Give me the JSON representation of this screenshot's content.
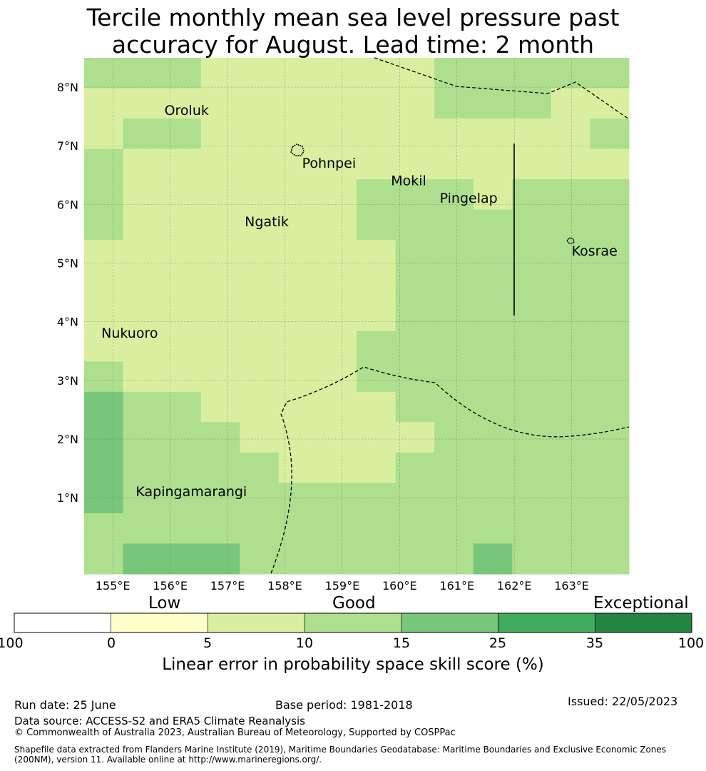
{
  "title_line1": "Tercile monthly mean sea level pressure past",
  "title_line2": "accuracy for August. Lead time: 2 month",
  "map": {
    "lon_range": [
      154.5,
      164.0
    ],
    "lat_range": [
      -0.3,
      8.5
    ],
    "x_ticks": [
      {
        "value": 155,
        "label": "155°E"
      },
      {
        "value": 156,
        "label": "156°E"
      },
      {
        "value": 157,
        "label": "157°E"
      },
      {
        "value": 158,
        "label": "158°E"
      },
      {
        "value": 159,
        "label": "159°E"
      },
      {
        "value": 160,
        "label": "160°E"
      },
      {
        "value": 161,
        "label": "161°E"
      },
      {
        "value": 162,
        "label": "162°E"
      },
      {
        "value": 163,
        "label": "163°E"
      }
    ],
    "y_ticks": [
      {
        "value": 1,
        "label": "1°N"
      },
      {
        "value": 2,
        "label": "2°N"
      },
      {
        "value": 3,
        "label": "3°N"
      },
      {
        "value": 4,
        "label": "4°N"
      },
      {
        "value": 5,
        "label": "5°N"
      },
      {
        "value": 6,
        "label": "6°N"
      },
      {
        "value": 7,
        "label": "7°N"
      },
      {
        "value": 8,
        "label": "8°N"
      }
    ],
    "cell_colors": {
      "1": "#d9ef9f",
      "2": "#addf8e",
      "3": "#78c679"
    },
    "cell_classes_legend": {
      "1": "5 to 10",
      "2": "10 to 15",
      "3": "15 to 25"
    },
    "grid_rows_north_to_south": [
      "22211111122222",
      "11111111122211",
      "12211111111112",
      "21111111111111",
      "21111112221222",
      "21111112222222",
      "11111111222222",
      "11111111222222",
      "11111111222222",
      "11111112222222",
      "21111112222222",
      "32211111222222",
      "32221111122222",
      "32222111222222",
      "32222222222222",
      "22222222222222",
      "23332222223222"
    ],
    "places": [
      {
        "name": "Oroluk",
        "lon": 155.9,
        "lat": 7.6
      },
      {
        "name": "Pohnpei",
        "lon": 158.3,
        "lat": 6.7
      },
      {
        "name": "Mokil",
        "lon": 159.85,
        "lat": 6.4
      },
      {
        "name": "Pingelap",
        "lon": 160.7,
        "lat": 6.1
      },
      {
        "name": "Ngatik",
        "lon": 157.3,
        "lat": 5.7
      },
      {
        "name": "Kosrae",
        "lon": 163.0,
        "lat": 5.2
      },
      {
        "name": "Nukuoro",
        "lon": 154.8,
        "lat": 3.8
      },
      {
        "name": "Kapingamarangi",
        "lon": 155.4,
        "lat": 1.1
      }
    ]
  },
  "colorbar": {
    "category_labels": [
      "Low",
      "Good",
      "Exceptional"
    ],
    "boundaries": [
      "-100",
      "0",
      "5",
      "10",
      "15",
      "25",
      "35",
      "100"
    ],
    "colors": [
      "#ffffff",
      "#ffffcc",
      "#d9ef9f",
      "#addf8e",
      "#78c679",
      "#41ab5d",
      "#238443"
    ],
    "title": "Linear error in probability space skill score (%)"
  },
  "footer": {
    "run_date": "Run date: 25 June",
    "base_period": "Base period: 1981-2018",
    "issued": "Issued: 22/05/2023",
    "data_source": "Data source: ACCESS-S2 and ERA5 Climate Reanalysis",
    "copyright": "© Commonwealth of Australia 2023, Australian Bureau of Meteorology, Supported by COSPPac",
    "shapefile_line1": "Shapefile data extracted from Flanders Marine Institute (2019), Maritime Boundaries Geodatabase: Maritime Boundaries and Exclusive Economic Zones",
    "shapefile_line2": "(200NM), version 11. Available online at http://www.marineregions.org/."
  }
}
